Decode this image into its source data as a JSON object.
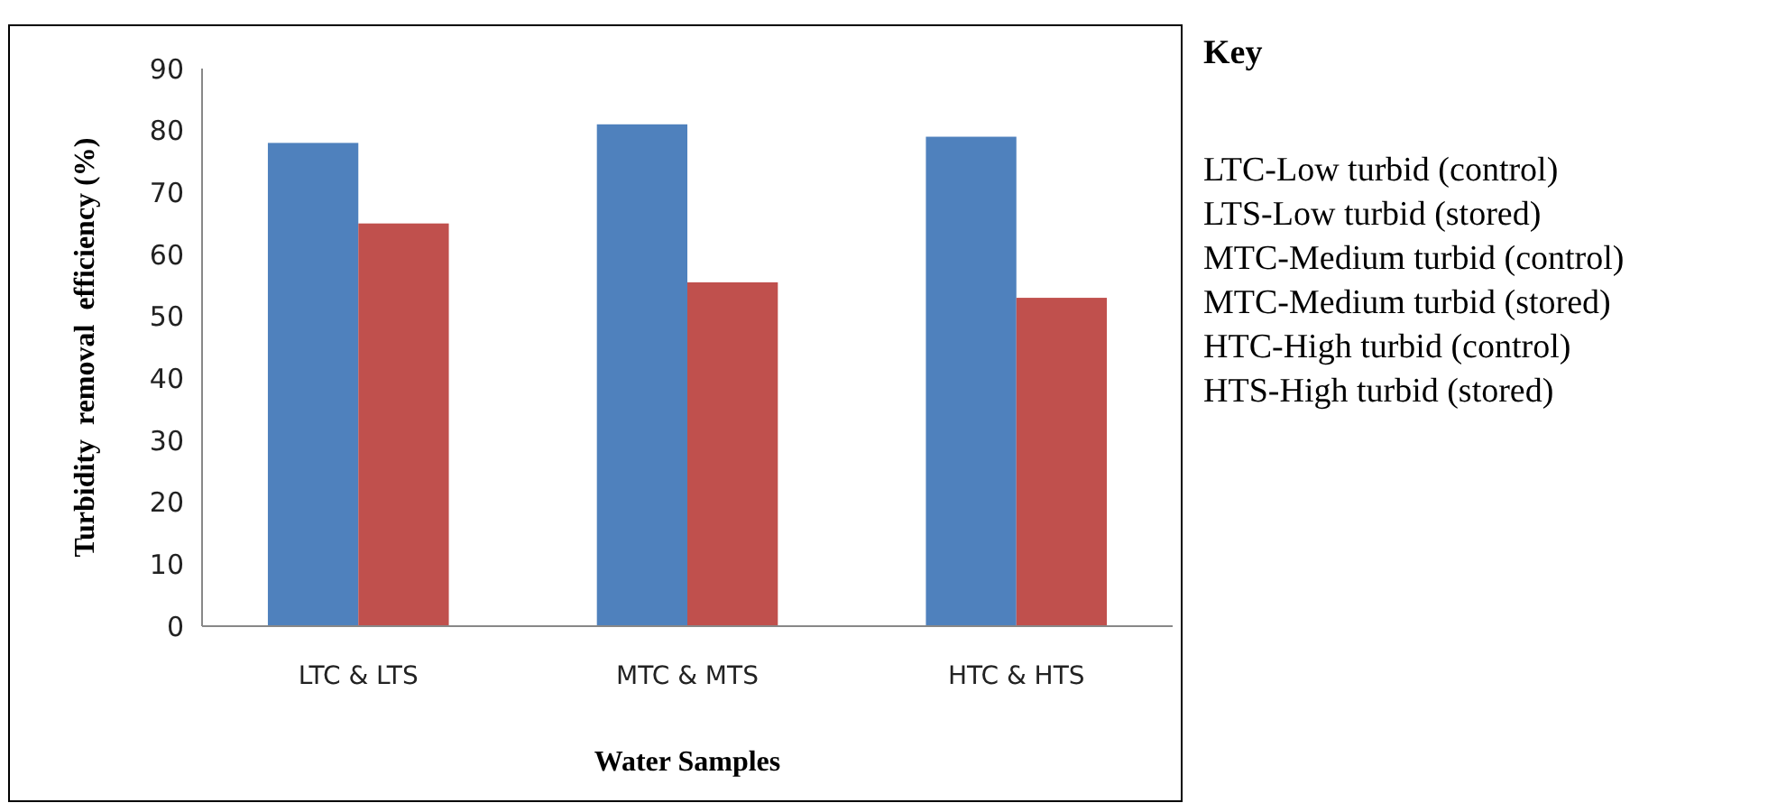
{
  "chart_data": {
    "type": "bar",
    "xlabel": "Water Samples",
    "ylabel": "Turbidity  removal  efficiency (%)",
    "categories": [
      "LTC & LTS",
      "MTC & MTS",
      "HTC & HTS"
    ],
    "series": [
      {
        "color": "#4f81bd",
        "values": [
          78,
          81,
          79
        ]
      },
      {
        "color": "#c0504d",
        "values": [
          65,
          55.5,
          53
        ]
      }
    ],
    "ylim": [
      0,
      90
    ],
    "yticks": [
      0,
      10,
      20,
      30,
      40,
      50,
      60,
      70,
      80,
      90
    ],
    "grid": false,
    "legend": false,
    "annotations": [
      "Key",
      "LTC-Low turbid (control)",
      "LTS-Low turbid (stored)",
      "MTC-Medium turbid (control)",
      "MTC-Medium turbid (stored)",
      "HTC-High turbid (control)",
      "HTS-High turbid (stored)"
    ]
  }
}
